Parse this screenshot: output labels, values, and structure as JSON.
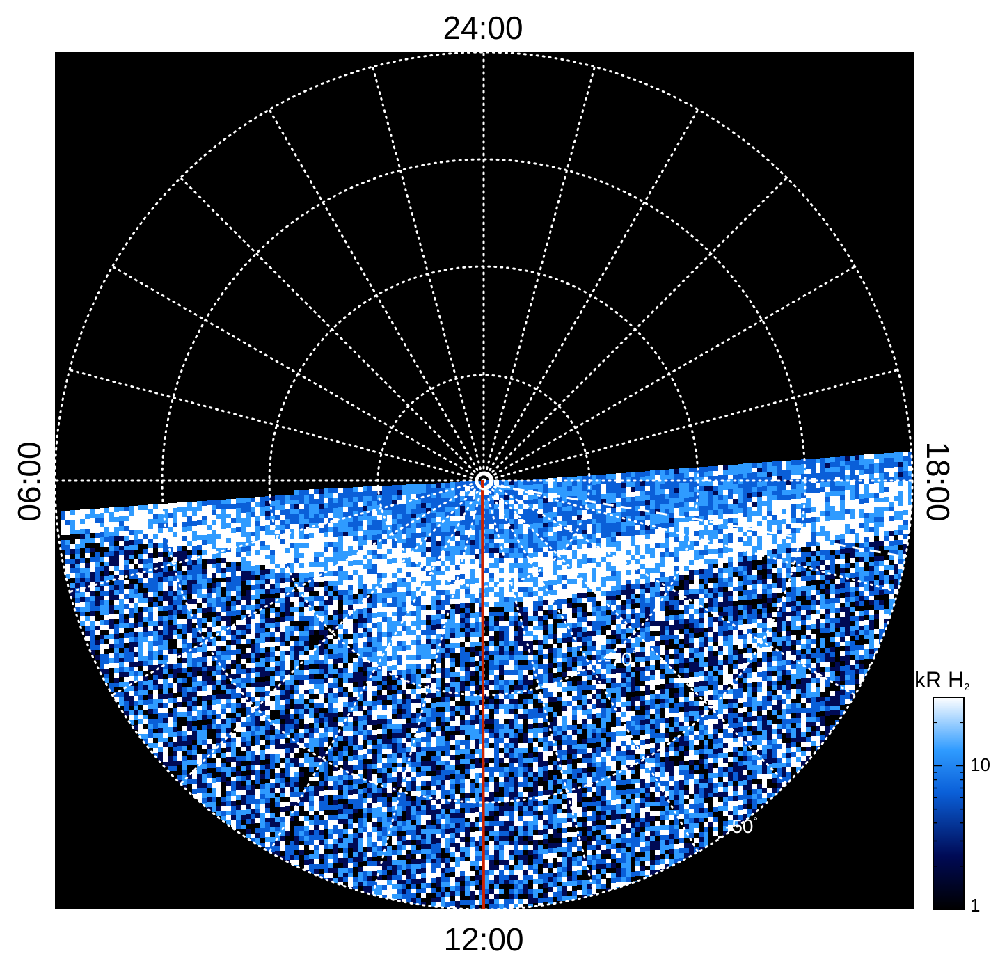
{
  "local_time_labels": {
    "top": "24:00",
    "bottom": "12:00",
    "left": "06:00",
    "right": "18:00"
  },
  "latitude_labels": {
    "lat70": "-70",
    "lat50": "-50",
    "degree_symbol": "°"
  },
  "colorbar": {
    "unit_main": "kR H",
    "unit_sub": "2",
    "tick_10": "10",
    "tick_1": "1",
    "log_range": [
      1,
      30
    ]
  },
  "colors": {
    "background": "#000000",
    "grid": "#ffffff",
    "meridian_line": "#cc2200",
    "low": "#000000",
    "mid_dark": "#000a55",
    "mid": "#0a5fd8",
    "bright": "#2f9bff",
    "high": "#ffffff"
  },
  "icons": {
    "pole_marker": "circle-marker-icon"
  }
}
